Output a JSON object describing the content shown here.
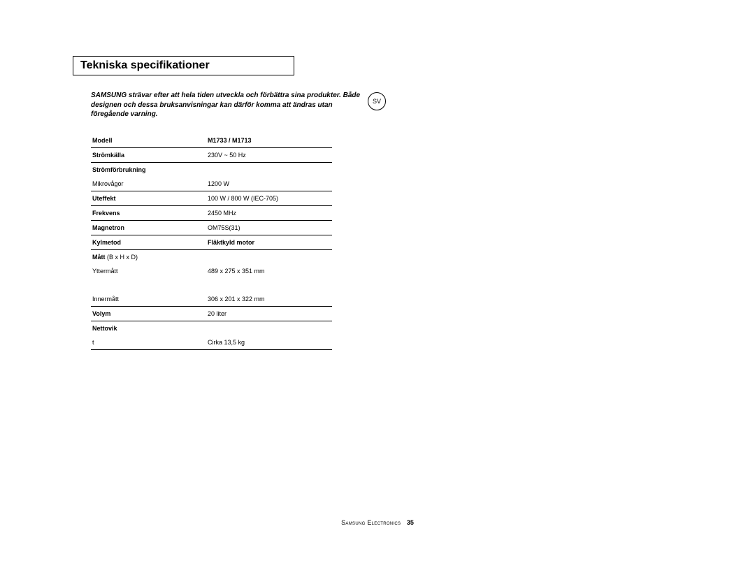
{
  "title": "Tekniska specifikationer",
  "intro": "SAMSUNG strävar efter att hela tiden utveckla och förbättra sina produkter. Både designen och dessa bruksanvisningar kan därför komma att ändras utan föregående varning.",
  "lang_badge": "SV",
  "table": {
    "header": {
      "label": "Modell",
      "value": "M1733 / M1713"
    },
    "rows": [
      {
        "label": "Strömkälla",
        "value": "230V ~ 50 Hz",
        "bold_label": true,
        "ruled": true
      },
      {
        "label": "Strömförbrukning",
        "value": "",
        "bold_label": true,
        "ruled": false
      },
      {
        "label": "Mikrovågor",
        "value": "1200 W",
        "bold_label": false,
        "ruled": true
      },
      {
        "label": "Uteffekt",
        "value": "100 W / 800 W  (IEC-705)",
        "bold_label": true,
        "ruled": true
      },
      {
        "label": "Frekvens",
        "value": "2450 MHz",
        "bold_label": true,
        "ruled": true
      },
      {
        "label": "Magnetron",
        "value": "OM75S(31)",
        "bold_label": true,
        "ruled": true
      },
      {
        "label": "Kylmetod",
        "value": "Fläktkyld motor",
        "bold_label": true,
        "bold_value": true,
        "ruled": true
      }
    ],
    "dims_label": "Mått",
    "dims_suffix": " (B x H x D)",
    "dims_outer_label": "Yttermått",
    "dims_outer_value": "489 x 275 x 351 mm",
    "dims_inner_label": "Innermått",
    "dims_inner_value": "306 x 201 x 322 mm",
    "volume_label": "Volym",
    "volume_value": "20 liter",
    "weight_label": "Nettovik",
    "weight_sub": "t",
    "weight_value": "Cirka 13,5 kg"
  },
  "footer": {
    "company": "Samsung Electronics",
    "page": "35"
  }
}
